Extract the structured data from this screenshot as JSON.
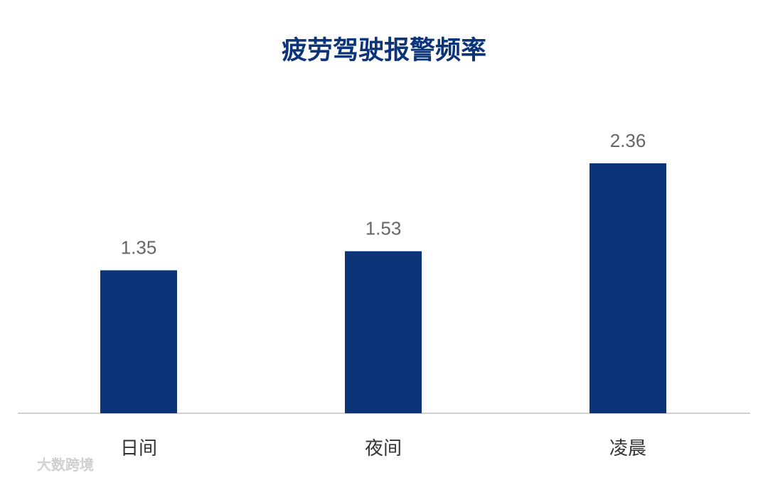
{
  "chart_data": {
    "type": "bar",
    "title": "疲劳驾驶报警频率",
    "categories": [
      "日间",
      "夜间",
      "凌晨"
    ],
    "values": [
      1.35,
      1.53,
      2.36
    ],
    "color": "#0c3479"
  },
  "watermark": "大数跨境"
}
